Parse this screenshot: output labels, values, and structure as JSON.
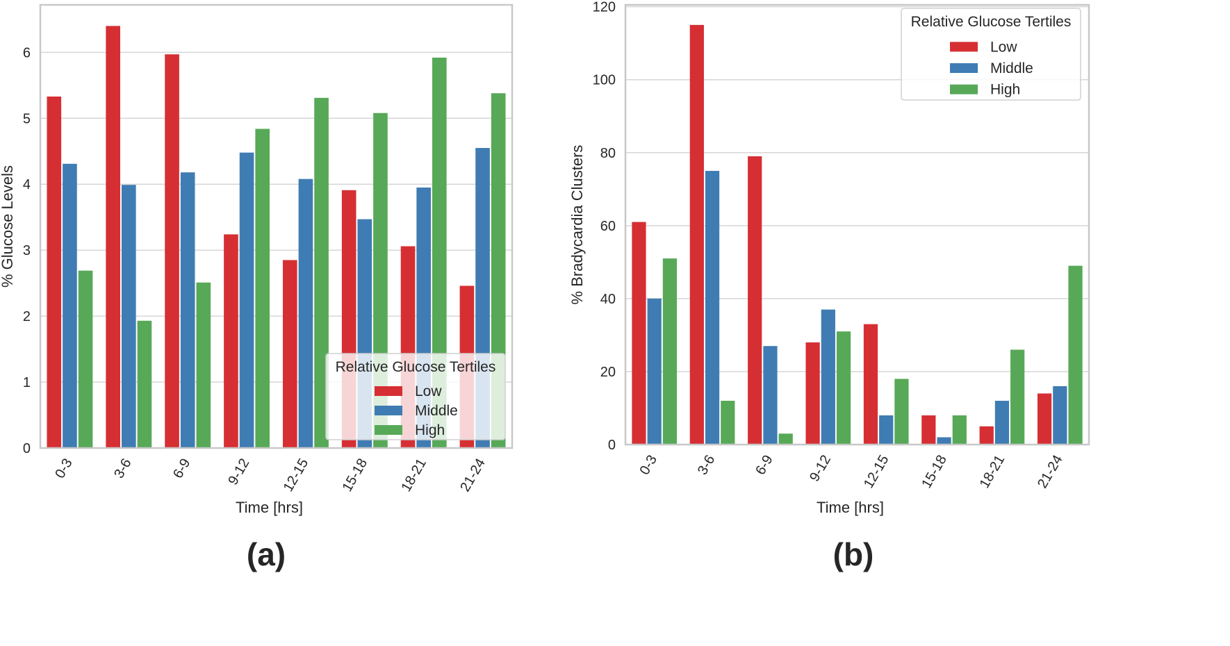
{
  "colors": {
    "Low": "#d62f33",
    "Middle": "#3f7cb3",
    "High": "#57a957",
    "grid": "#d6d6d6",
    "frame": "#c8c8c8"
  },
  "chart_data": [
    {
      "type": "bar",
      "panel_label": "(a)",
      "categories": [
        "0-3",
        "3-6",
        "6-9",
        "9-12",
        "12-15",
        "15-18",
        "18-21",
        "21-24"
      ],
      "series": [
        {
          "name": "Low",
          "values": [
            5.33,
            6.4,
            5.97,
            3.24,
            2.85,
            3.91,
            3.06,
            2.46
          ]
        },
        {
          "name": "Middle",
          "values": [
            4.31,
            3.99,
            4.18,
            4.48,
            4.08,
            3.47,
            3.95,
            4.55
          ]
        },
        {
          "name": "High",
          "values": [
            2.69,
            1.93,
            2.51,
            4.84,
            5.31,
            5.08,
            5.92,
            5.38
          ]
        }
      ],
      "title": "",
      "xlabel": "Time [hrs]",
      "ylabel": "% Glucose Levels",
      "ylim": [
        0,
        6.72
      ],
      "yticks": [
        0,
        1,
        2,
        3,
        4,
        5,
        6
      ],
      "grid": true,
      "legend": {
        "title": "Relative Glucose Tertiles",
        "placement": "lower-right"
      }
    },
    {
      "type": "bar",
      "panel_label": "(b)",
      "categories": [
        "0-3",
        "3-6",
        "6-9",
        "9-12",
        "12-15",
        "15-18",
        "18-21",
        "21-24"
      ],
      "series": [
        {
          "name": "Low",
          "values": [
            61,
            115,
            79,
            28,
            33,
            8,
            5,
            14
          ]
        },
        {
          "name": "Middle",
          "values": [
            40,
            75,
            27,
            37,
            8,
            2,
            12,
            16
          ]
        },
        {
          "name": "High",
          "values": [
            51,
            12,
            3,
            31,
            18,
            8,
            26,
            49
          ]
        }
      ],
      "title": "",
      "xlabel": "Time [hrs]",
      "ylabel": "% Bradycardia Clusters",
      "ylim": [
        0,
        120.5
      ],
      "yticks": [
        0,
        20,
        40,
        60,
        80,
        100,
        120
      ],
      "grid": true,
      "legend": {
        "title": "Relative Glucose Tertiles",
        "placement": "upper-right"
      }
    }
  ]
}
